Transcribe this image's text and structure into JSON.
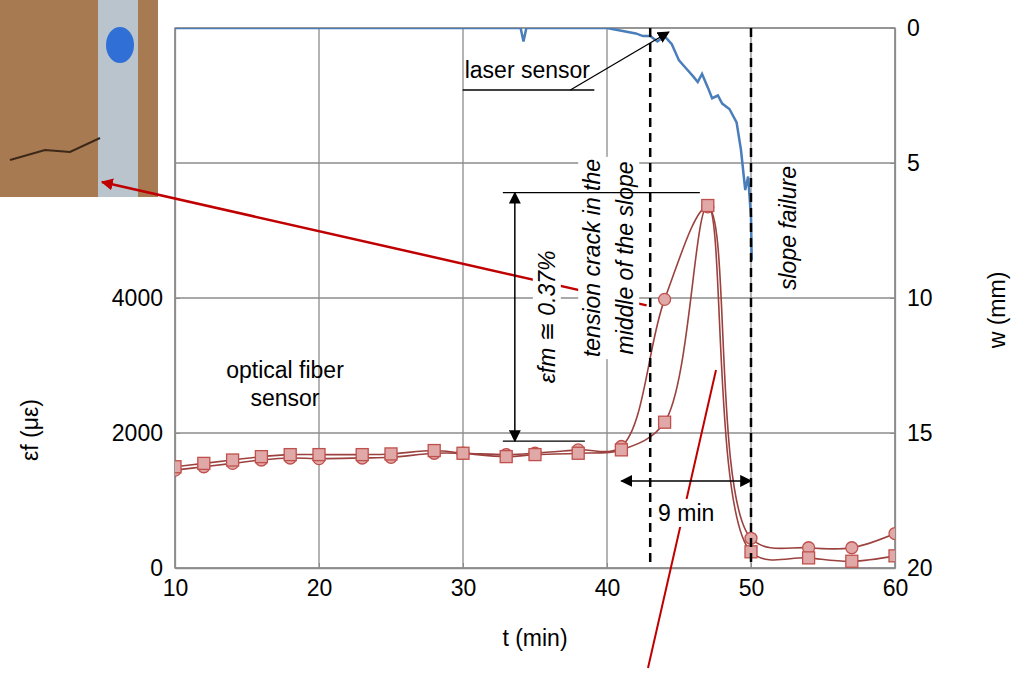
{
  "chart_data": {
    "type": "line",
    "xlabel": "t (min)",
    "ylabel": "εf (με)",
    "y2label": "w (mm)",
    "xlim": [
      10,
      60
    ],
    "xticks": [
      10,
      20,
      30,
      40,
      50,
      60
    ],
    "ylim": [
      0,
      8000
    ],
    "yticks": [
      0,
      2000,
      4000
    ],
    "y2lim": [
      20,
      0
    ],
    "y2ticks": [
      0,
      5,
      10,
      15,
      20
    ],
    "grid": true,
    "series": [
      {
        "x": [
          10,
          12,
          14,
          16,
          18,
          20,
          23,
          25,
          28,
          30,
          33,
          35,
          38,
          41,
          44,
          47,
          50,
          54,
          57,
          60
        ],
        "values": [
          1450,
          1500,
          1550,
          1600,
          1630,
          1620,
          1630,
          1640,
          1700,
          1700,
          1680,
          1700,
          1750,
          1800,
          3980,
          5350,
          440,
          300,
          300,
          510
        ],
        "color": "#c0504d",
        "marker": "circle",
        "line_style": "smooth"
      },
      {
        "x": [
          10,
          12,
          14,
          16,
          18,
          20,
          23,
          25,
          28,
          30,
          33,
          35,
          38,
          41,
          44,
          47,
          50,
          54,
          57,
          60
        ],
        "values": [
          1500,
          1550,
          1600,
          1650,
          1680,
          1680,
          1680,
          1690,
          1740,
          1700,
          1650,
          1680,
          1700,
          1750,
          2160,
          5370,
          240,
          150,
          100,
          180
        ],
        "color": "#c0504d",
        "marker": "square",
        "line_style": "smooth"
      },
      {
        "x": [
          10,
          15,
          20,
          25,
          30,
          34,
          34.2,
          34.4,
          40,
          41,
          42,
          42.5,
          43,
          43.5,
          44,
          44.5,
          45,
          45.5,
          46,
          46.3,
          46.6,
          47,
          47.3,
          47.7,
          48,
          48.5,
          49,
          49.3,
          49.6,
          49.8,
          50,
          50.05
        ],
        "values": [
          0,
          0,
          0,
          0,
          0,
          0,
          0.5,
          0,
          0,
          0.1,
          0.2,
          0.3,
          0.3,
          0.5,
          0.3,
          0.6,
          1.2,
          1.5,
          1.8,
          2.0,
          1.7,
          2.2,
          2.6,
          2.5,
          2.8,
          3.0,
          3.5,
          4.5,
          6.0,
          5.5,
          7.0,
          8.6
        ],
        "color": "#4a7ebb",
        "marker": "none",
        "line_style": "solid",
        "axis": "y2"
      }
    ],
    "annotations": [
      {
        "text": "laser sensor",
        "x": 44.5,
        "y": 0,
        "axis": "y2"
      },
      {
        "text": "optical fiber sensor"
      },
      {
        "text": "tension crack in the middle of the slope",
        "x": 43
      },
      {
        "text": "slope failure",
        "x": 50
      },
      {
        "text": "9 min",
        "x_start": 41,
        "x_end": 50,
        "y": 1290
      },
      {
        "text": "εfm ≅ 0.37%",
        "x": 33.6,
        "y_start": 1880,
        "y_end": 5560
      }
    ]
  }
}
